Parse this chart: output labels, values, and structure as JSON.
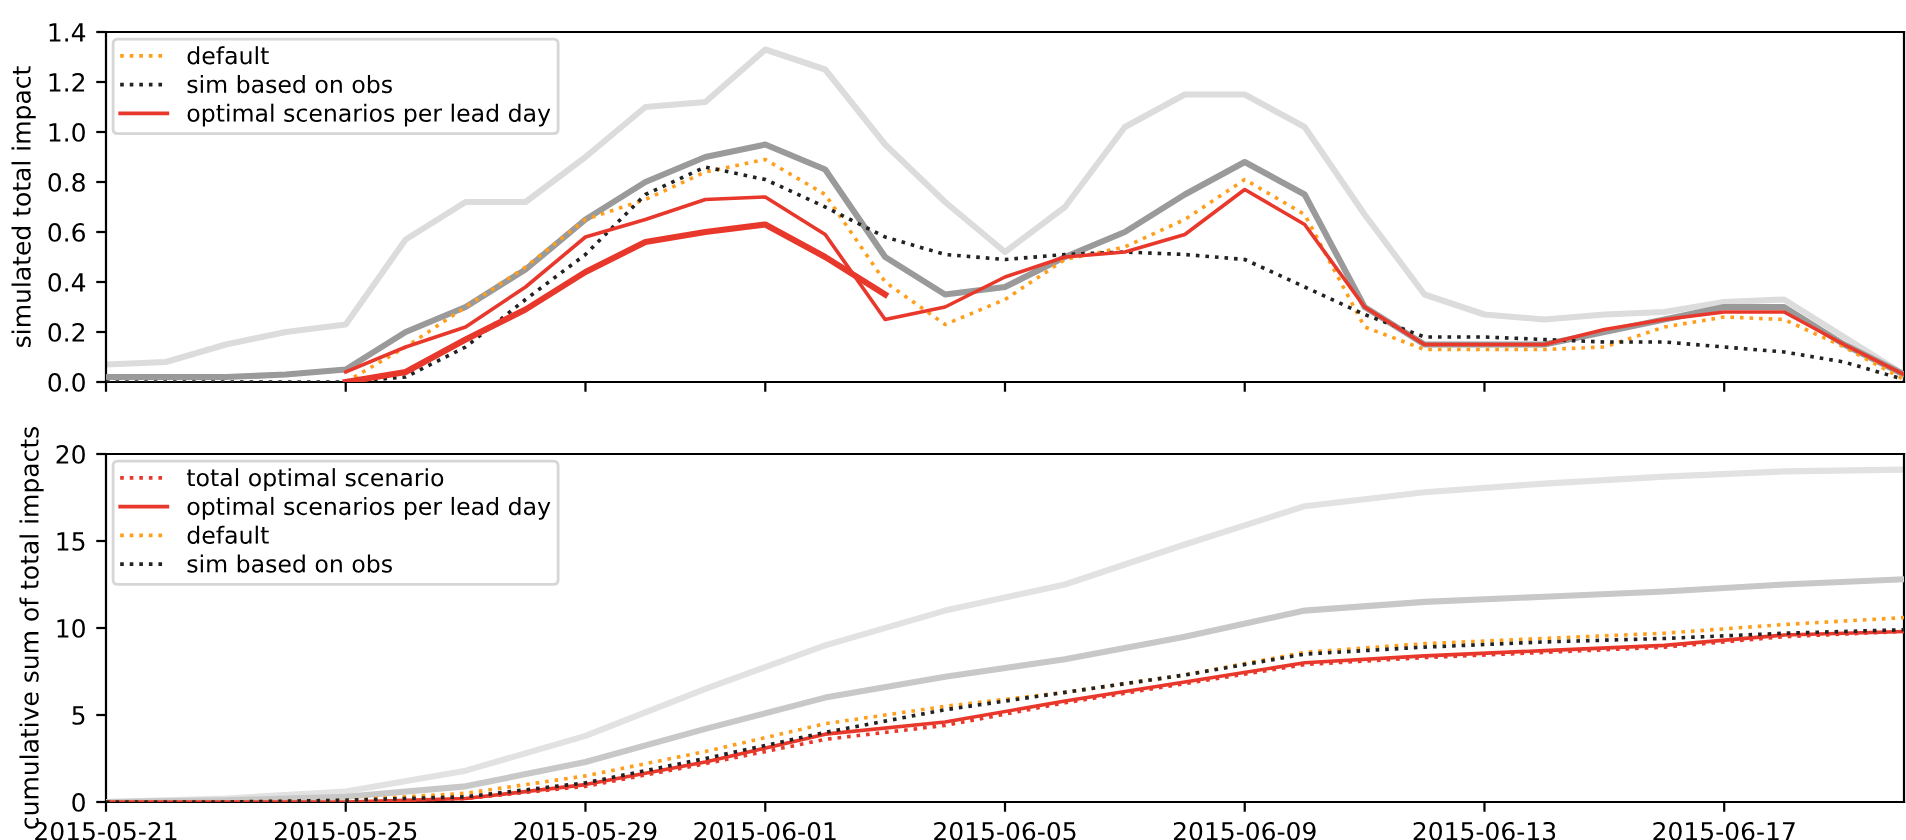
{
  "chart_data": [
    {
      "type": "line",
      "ylabel": "simulated total impact",
      "xlim": [
        "2015-05-21",
        "2015-06-20"
      ],
      "ylim": [
        0,
        1.4
      ],
      "xticks": [
        "2015-05-21",
        "2015-05-25",
        "2015-05-29",
        "2015-06-01",
        "2015-06-05",
        "2015-06-09",
        "2015-06-13",
        "2015-06-17"
      ],
      "yticks": [
        {
          "value": 0,
          "label": "0.0"
        },
        0.2,
        0.4,
        0.6,
        0.8,
        {
          "value": 1,
          "label": "1.0"
        },
        1.2,
        1.4
      ],
      "tick_labels": "y",
      "legend": "top left",
      "grid": false,
      "x": [
        "2015-05-21",
        "2015-05-22",
        "2015-05-23",
        "2015-05-24",
        "2015-05-25",
        "2015-05-26",
        "2015-05-27",
        "2015-05-28",
        "2015-05-29",
        "2015-05-30",
        "2015-05-31",
        "2015-06-01",
        "2015-06-02",
        "2015-06-03",
        "2015-06-04",
        "2015-06-05",
        "2015-06-06",
        "2015-06-07",
        "2015-06-08",
        "2015-06-09",
        "2015-06-10",
        "2015-06-11",
        "2015-06-12",
        "2015-06-13",
        "2015-06-14",
        "2015-06-15",
        "2015-06-16",
        "2015-06-17",
        "2015-06-18",
        "2015-06-19",
        "2015-06-20"
      ],
      "series": [
        {
          "color": "#dcdcdc",
          "line_style": "solid",
          "values": [
            0.07,
            0.08,
            0.15,
            0.2,
            0.23,
            0.57,
            0.72,
            0.72,
            0.9,
            1.1,
            1.12,
            1.33,
            1.25,
            0.95,
            0.72,
            0.52,
            0.7,
            1.02,
            1.15,
            1.15,
            1.02,
            0.67,
            0.35,
            0.27,
            0.25,
            0.27,
            0.28,
            0.32,
            0.33,
            0.18,
            0.03
          ]
        },
        {
          "color": "#9a9a9a",
          "line_style": "solid",
          "values": [
            0.02,
            0.02,
            0.02,
            0.03,
            0.05,
            0.2,
            0.3,
            0.45,
            0.65,
            0.8,
            0.9,
            0.95,
            0.85,
            0.5,
            0.35,
            0.38,
            0.5,
            0.6,
            0.75,
            0.88,
            0.75,
            0.3,
            0.15,
            0.15,
            0.15,
            0.2,
            0.25,
            0.3,
            0.3,
            0.15,
            0.03
          ]
        },
        {
          "name": "default",
          "color": "#ff9e1b",
          "line_style": "dotted",
          "values": [
            null,
            null,
            null,
            null,
            0,
            0.14,
            0.3,
            0.46,
            0.65,
            0.73,
            0.84,
            0.89,
            0.75,
            0.4,
            0.23,
            0.33,
            0.49,
            0.54,
            0.65,
            0.81,
            0.67,
            0.22,
            0.13,
            0.13,
            0.13,
            0.14,
            0.22,
            0.26,
            0.25,
            0.14,
            0.01
          ]
        },
        {
          "name": "sim based on obs",
          "color": "#222222",
          "line_style": "dotted",
          "values": [
            0,
            0,
            0,
            0,
            0,
            0.02,
            0.14,
            0.33,
            0.51,
            0.75,
            0.86,
            0.81,
            0.7,
            0.58,
            0.51,
            0.49,
            0.51,
            0.52,
            0.51,
            0.49,
            0.38,
            0.27,
            0.18,
            0.18,
            0.17,
            0.16,
            0.16,
            0.14,
            0.12,
            0.08,
            0.01
          ]
        },
        {
          "name": "optimal scenarios per lead day",
          "color": "#e8382c",
          "line_style": "solid",
          "values": [
            null,
            null,
            null,
            null,
            0.04,
            0.14,
            0.22,
            0.38,
            0.58,
            0.65,
            0.73,
            0.74,
            0.59,
            0.25,
            0.3,
            0.42,
            0.5,
            0.52,
            0.59,
            0.77,
            0.63,
            0.3,
            0.15,
            0.15,
            0.15,
            0.21,
            0.25,
            0.28,
            0.28,
            0.15,
            0.03
          ]
        },
        {
          "color": "#e8382c",
          "line_style": "solid",
          "values": [
            null,
            null,
            null,
            null,
            0,
            0.04,
            0.17,
            0.29,
            0.44,
            0.56,
            0.6,
            0.63,
            0.5,
            0.35,
            null,
            null,
            null,
            null,
            null,
            null,
            null,
            null,
            null,
            null,
            null,
            null,
            null,
            null,
            null,
            null,
            null
          ]
        }
      ]
    },
    {
      "type": "line",
      "ylabel": "cumulative sum of total impacts",
      "xlim": [
        "2015-05-21",
        "2015-06-20"
      ],
      "ylim": [
        0,
        20
      ],
      "xticks": [
        "2015-05-21",
        "2015-05-25",
        "2015-05-29",
        "2015-06-01",
        "2015-06-05",
        "2015-06-09",
        "2015-06-13",
        "2015-06-17"
      ],
      "yticks": [
        0,
        5,
        10,
        15,
        20
      ],
      "legend": "top left",
      "grid": false,
      "x": [
        "2015-05-21",
        "2015-05-23",
        "2015-05-25",
        "2015-05-27",
        "2015-05-29",
        "2015-05-31",
        "2015-06-02",
        "2015-06-04",
        "2015-06-06",
        "2015-06-08",
        "2015-06-10",
        "2015-06-12",
        "2015-06-14",
        "2015-06-16",
        "2015-06-18",
        "2015-06-20"
      ],
      "series": [
        {
          "color": "#e2e2e2",
          "line_style": "solid",
          "values": [
            0,
            0.2,
            0.6,
            1.8,
            3.8,
            6.5,
            9.0,
            11.0,
            12.5,
            14.8,
            17.0,
            17.8,
            18.3,
            18.7,
            19.0,
            19.1
          ]
        },
        {
          "color": "#c8c8c8",
          "line_style": "solid",
          "values": [
            0,
            0.1,
            0.3,
            0.9,
            2.3,
            4.2,
            6.0,
            7.2,
            8.2,
            9.5,
            11.0,
            11.5,
            11.8,
            12.1,
            12.5,
            12.8
          ]
        },
        {
          "name": "total optimal scenario",
          "color": "#e8382c",
          "line_style": "dotted",
          "values": [
            0,
            0,
            0,
            0.2,
            0.9,
            2.2,
            3.6,
            4.4,
            5.7,
            6.8,
            7.9,
            8.3,
            8.6,
            8.9,
            9.5,
            9.8
          ]
        },
        {
          "name": "optimal scenarios per lead day",
          "color": "#e8382c",
          "line_style": "solid",
          "values": [
            0,
            0,
            0,
            0.2,
            1.0,
            2.3,
            3.9,
            4.6,
            5.8,
            6.9,
            8.0,
            8.4,
            8.7,
            9.0,
            9.6,
            9.8
          ]
        },
        {
          "name": "default",
          "color": "#ff9e1b",
          "line_style": "dotted",
          "values": [
            0,
            0,
            0.1,
            0.5,
            1.5,
            2.9,
            4.5,
            5.5,
            6.3,
            7.3,
            8.6,
            9.1,
            9.4,
            9.7,
            10.2,
            10.6
          ]
        },
        {
          "name": "sim based on obs",
          "color": "#222222",
          "line_style": "dotted",
          "values": [
            0,
            0,
            0.1,
            0.3,
            1.1,
            2.5,
            4.0,
            5.3,
            6.3,
            7.3,
            8.5,
            8.9,
            9.2,
            9.4,
            9.7,
            9.9
          ]
        }
      ]
    }
  ]
}
